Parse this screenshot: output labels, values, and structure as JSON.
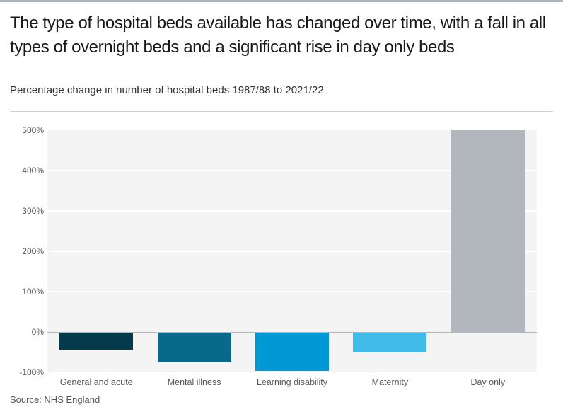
{
  "header": {
    "title": "The type of hospital beds available has changed over time, with a fall in all types of overnight beds and a significant rise in day only beds",
    "subtitle": "Percentage change in number of hospital beds 1987/88 to 2021/22"
  },
  "chart_data": {
    "type": "bar",
    "title": "Percentage change in number of hospital beds 1987/88 to 2021/22",
    "categories": [
      "General and acute",
      "Mental illness",
      "Learning disability",
      "Maternity",
      "Day only"
    ],
    "values": [
      -44,
      -73,
      -97,
      -51,
      500
    ],
    "bar_colors": [
      "#033b4a",
      "#07698c",
      "#0099d6",
      "#41bce8",
      "#b1b7bd"
    ],
    "xlabel": "",
    "ylabel": "",
    "ylim": [
      -100,
      500
    ],
    "yticks": [
      {
        "v": 500,
        "label": "500%"
      },
      {
        "v": 400,
        "label": "400%"
      },
      {
        "v": 300,
        "label": "300%"
      },
      {
        "v": 200,
        "label": "200%"
      },
      {
        "v": 100,
        "label": "100%"
      },
      {
        "v": 0,
        "label": "0%"
      },
      {
        "v": -100,
        "label": "-100%"
      }
    ],
    "grid": true,
    "legend": false,
    "plot_background": "#f4f4f5",
    "gridline_color": "#ffffff",
    "zero_line_color": "#b3b6b8"
  },
  "source": {
    "label": "Source: NHS England"
  },
  "colors": {
    "top_bar": "#aeb6bc",
    "divider": "#cfd2d4",
    "title_text": "#191919",
    "axis_text": "#595959"
  }
}
